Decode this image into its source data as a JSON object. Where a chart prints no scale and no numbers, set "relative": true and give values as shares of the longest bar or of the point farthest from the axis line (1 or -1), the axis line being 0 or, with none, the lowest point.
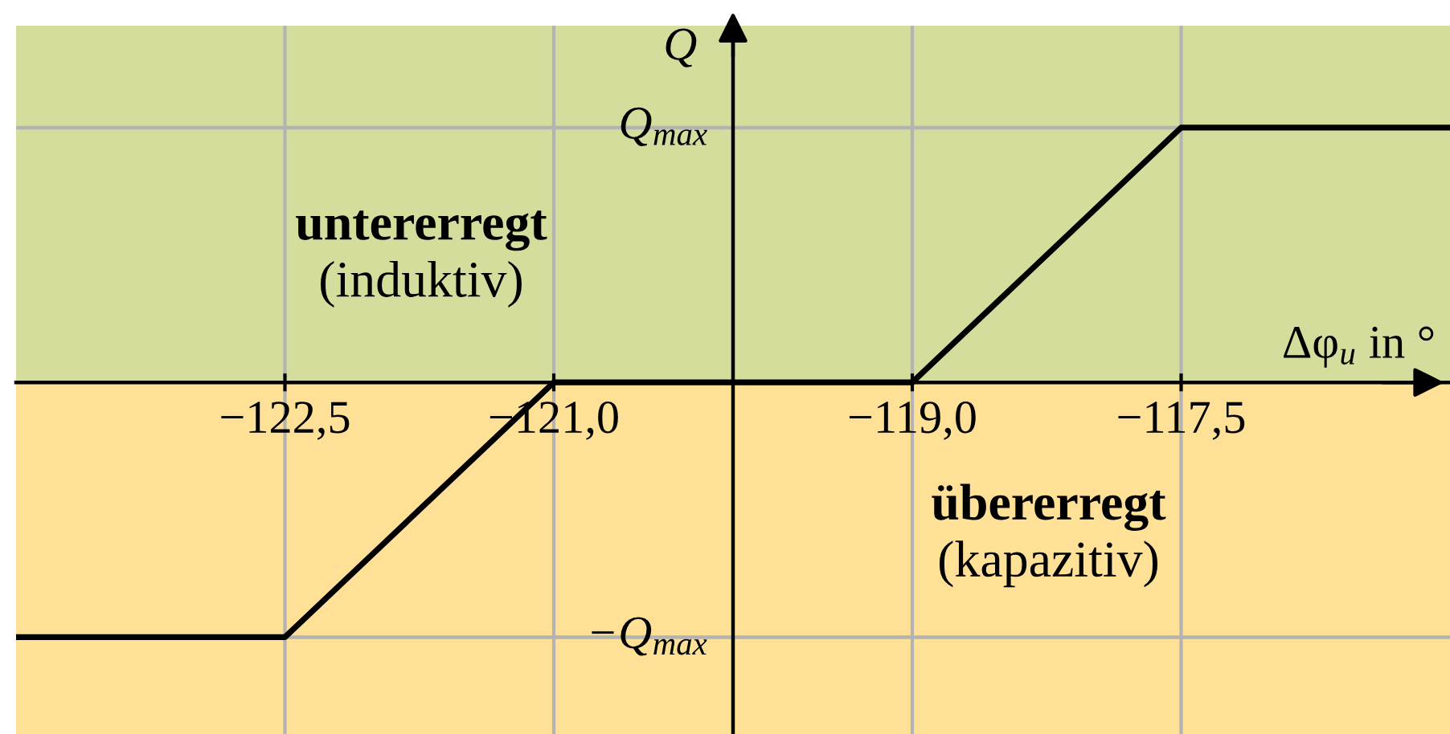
{
  "chart_data": {
    "type": "line",
    "xlabel": "Δφ$_{u}$ in °",
    "ylabel": "Q",
    "relative": true,
    "xlim": [
      -124,
      -116
    ],
    "xticks": [
      {
        "value": -122.5,
        "label": "−122,5"
      },
      {
        "value": -121,
        "label": "−121,0"
      },
      {
        "value": -119,
        "label": "−119,0"
      },
      {
        "value": -117.5,
        "label": "−117,5"
      }
    ],
    "grid": "x",
    "ref_lines": [
      {
        "axis": "y",
        "value": 1,
        "label": "Q$_{max}$",
        "color": "#b3b3b3"
      },
      {
        "axis": "y",
        "value": -1,
        "label": "−Q$_{max}$",
        "color": "#b3b3b3"
      },
      {
        "axis": "x",
        "value": -120,
        "color": "#000000"
      }
    ],
    "bands": [
      {
        "axis": "y",
        "from": 0,
        "to": 1.4,
        "color": "#d4dd9c",
        "label": "untererregt\n(induktiv)"
      },
      {
        "axis": "y",
        "from": -1.38,
        "to": 0,
        "color": "#fee096",
        "label": "übererregt\n(kapazitiv)"
      }
    ],
    "x": [
      -124,
      -122.5,
      -121,
      -119,
      -117.5,
      -116
    ],
    "series": [
      {
        "color": "#000000",
        "values": [
          -1,
          -1,
          0,
          0,
          1,
          1
        ]
      }
    ]
  }
}
